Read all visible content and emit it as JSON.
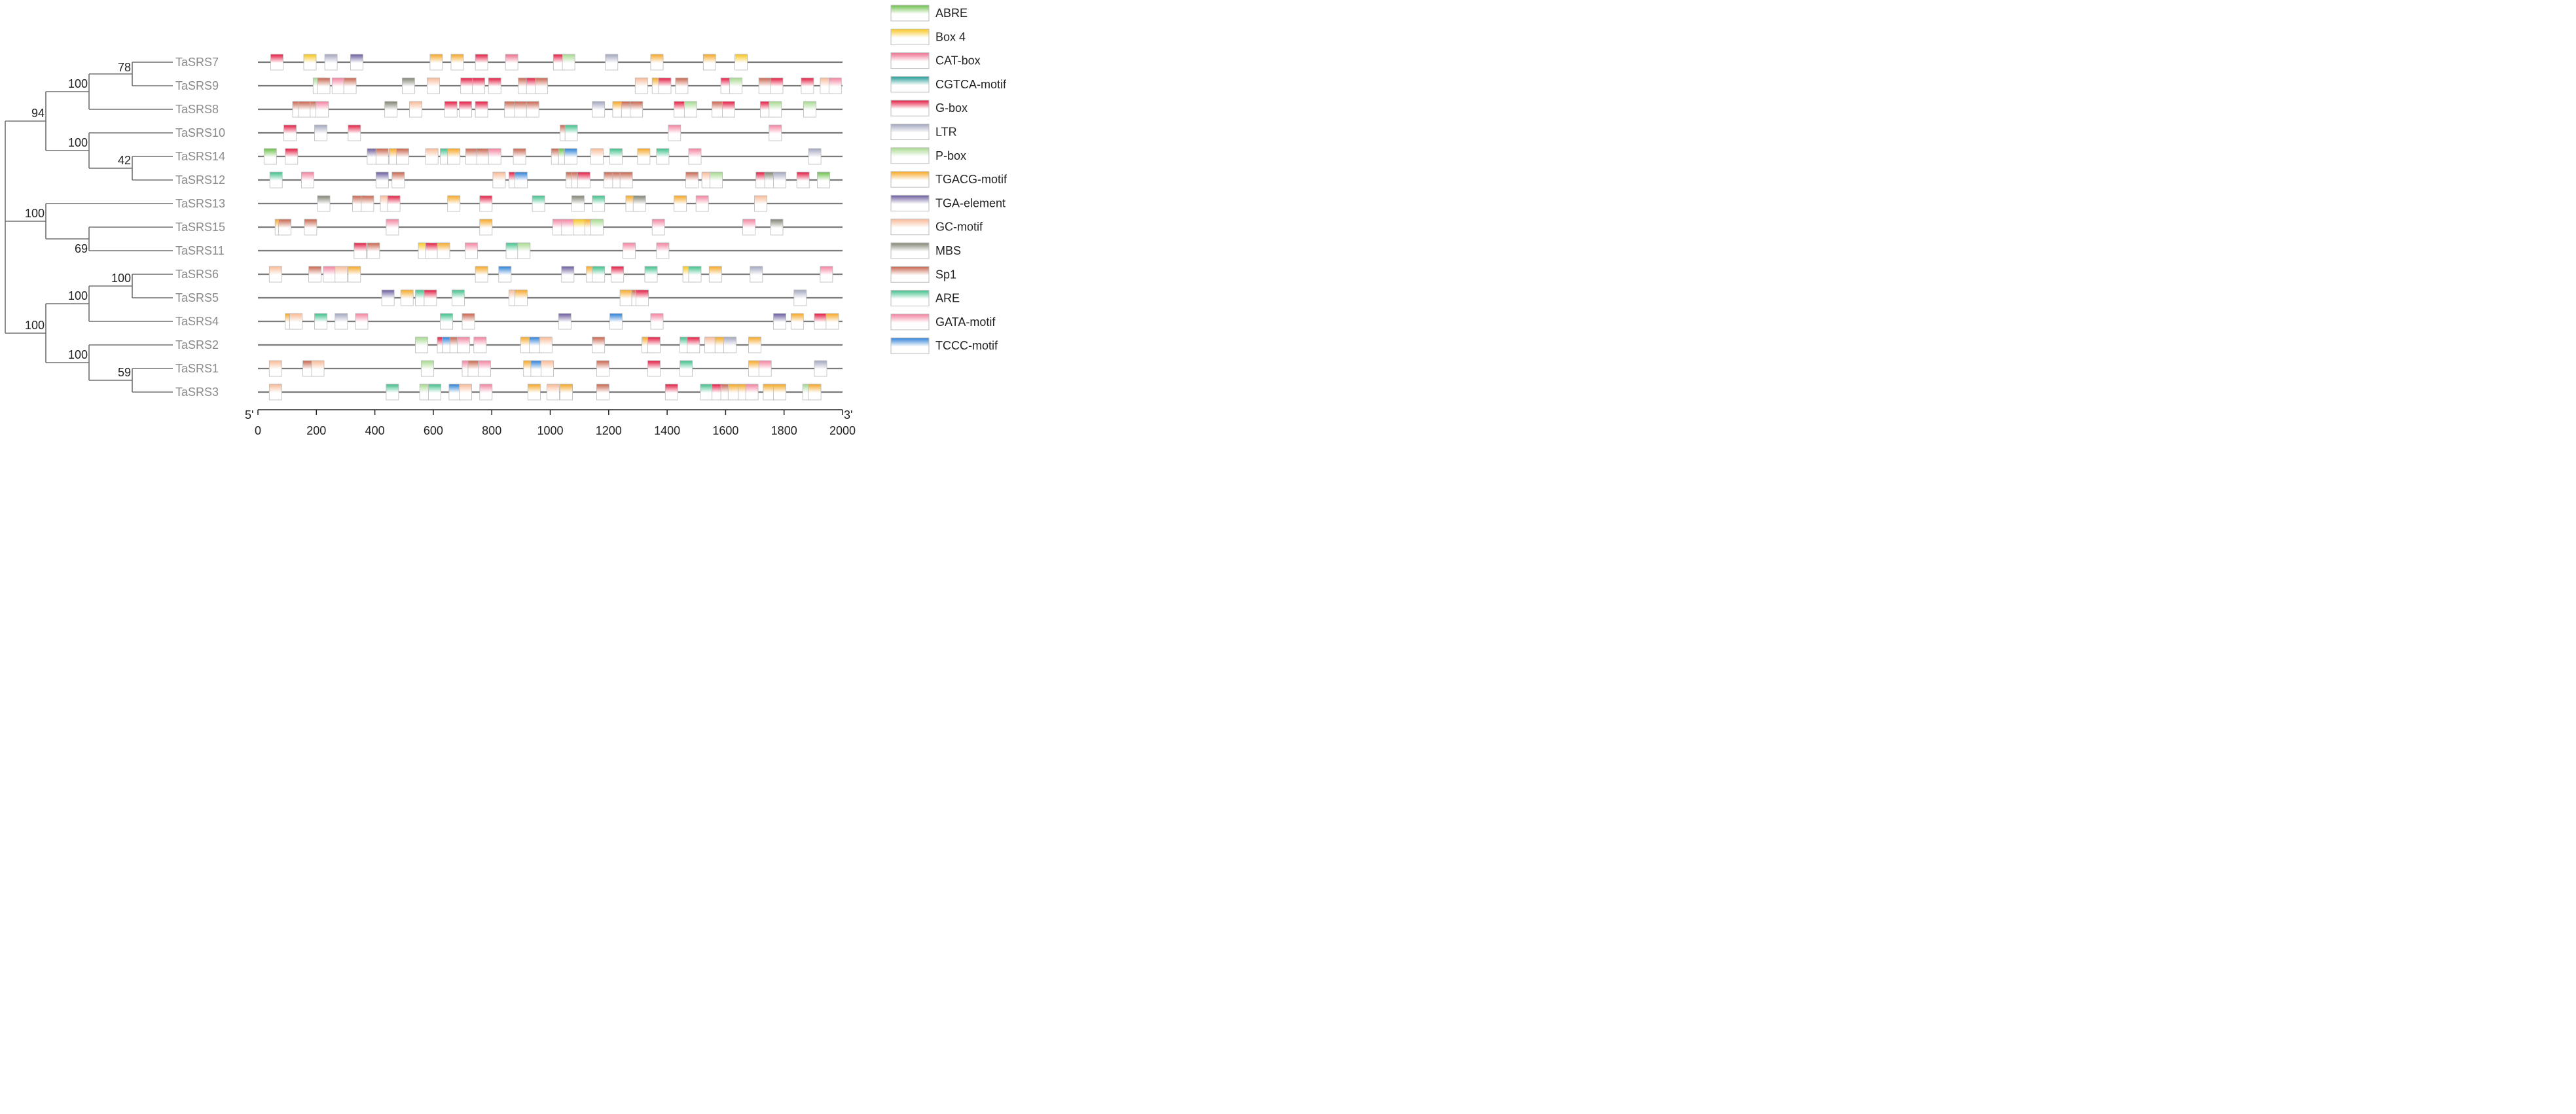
{
  "genes": [
    "TaSRS7",
    "TaSRS9",
    "TaSRS8",
    "TaSRS10",
    "TaSRS14",
    "TaSRS12",
    "TaSRS13",
    "TaSRS15",
    "TaSRS11",
    "TaSRS6",
    "TaSRS5",
    "TaSRS4",
    "TaSRS2",
    "TaSRS1",
    "TaSRS3"
  ],
  "bootstrap": {
    "n78": "78",
    "n100a": "100",
    "n94": "94",
    "n100b": "100",
    "n42": "42",
    "n100root": "100",
    "n69": "69",
    "n100c": "100",
    "n100d": "100",
    "n100e": "100",
    "n100f": "100",
    "n59": "59"
  },
  "axis": {
    "five_prime": "5'",
    "three_prime": "3'",
    "min": 0,
    "max": 2000,
    "ticks": [
      "0",
      "200",
      "400",
      "600",
      "800",
      "1000",
      "1200",
      "1400",
      "1600",
      "1800",
      "2000"
    ]
  },
  "legend": [
    {
      "name": "ABRE",
      "color": "#6cbf4a"
    },
    {
      "name": "Box 4",
      "color": "#f7c51c"
    },
    {
      "name": "CAT-box",
      "color": "#ec6d8c"
    },
    {
      "name": "CGTCA-motif",
      "color": "#1f9a94"
    },
    {
      "name": "G-box",
      "color": "#e3183f"
    },
    {
      "name": "LTR",
      "color": "#a2a6be"
    },
    {
      "name": "P-box",
      "color": "#a6d98e"
    },
    {
      "name": "TGACG-motif",
      "color": "#f5a623"
    },
    {
      "name": "TGA-element",
      "color": "#6a5a9c"
    },
    {
      "name": "GC-motif",
      "color": "#f8b996"
    },
    {
      "name": "MBS",
      "color": "#7d8270"
    },
    {
      "name": "Sp1",
      "color": "#c7634c"
    },
    {
      "name": "ARE",
      "color": "#3fbf8a"
    },
    {
      "name": "GATA-motif",
      "color": "#f2819e"
    },
    {
      "name": "TCCC-motif",
      "color": "#2b7fd6"
    }
  ],
  "motifs": {
    "TaSRS7": [
      [
        65,
        "G-box"
      ],
      [
        178,
        "Box 4"
      ],
      [
        250,
        "LTR"
      ],
      [
        338,
        "TGA-element"
      ],
      [
        610,
        "TGACG-motif"
      ],
      [
        682,
        "TGACG-motif"
      ],
      [
        765,
        "G-box"
      ],
      [
        868,
        "CAT-box"
      ],
      [
        1032,
        "G-box"
      ],
      [
        1063,
        "P-box"
      ],
      [
        1210,
        "LTR"
      ],
      [
        1365,
        "TGACG-motif"
      ],
      [
        1545,
        "TGACG-motif"
      ],
      [
        1653,
        "Box 4"
      ]
    ],
    "TaSRS9": [
      [
        210,
        "P-box"
      ],
      [
        225,
        "Sp1"
      ],
      [
        275,
        "GATA-motif"
      ],
      [
        315,
        "Sp1"
      ],
      [
        515,
        "MBS"
      ],
      [
        600,
        "GC-motif"
      ],
      [
        715,
        "G-box"
      ],
      [
        755,
        "G-box"
      ],
      [
        810,
        "G-box"
      ],
      [
        912,
        "Sp1"
      ],
      [
        940,
        "G-box"
      ],
      [
        970,
        "Sp1"
      ],
      [
        1312,
        "GC-motif"
      ],
      [
        1370,
        "TGACG-motif"
      ],
      [
        1392,
        "G-box"
      ],
      [
        1450,
        "Sp1"
      ],
      [
        1605,
        "G-box"
      ],
      [
        1635,
        "P-box"
      ],
      [
        1735,
        "Sp1"
      ],
      [
        1775,
        "G-box"
      ],
      [
        1880,
        "G-box"
      ],
      [
        1945,
        "GC-motif"
      ],
      [
        1975,
        "GATA-motif"
      ]
    ],
    "TaSRS8": [
      [
        140,
        "Sp1"
      ],
      [
        160,
        "Sp1"
      ],
      [
        200,
        "Sp1"
      ],
      [
        220,
        "GATA-motif"
      ],
      [
        455,
        "MBS"
      ],
      [
        540,
        "GC-motif"
      ],
      [
        660,
        "G-box"
      ],
      [
        710,
        "G-box"
      ],
      [
        765,
        "G-box"
      ],
      [
        865,
        "Sp1"
      ],
      [
        900,
        "Sp1"
      ],
      [
        940,
        "Sp1"
      ],
      [
        1165,
        "LTR"
      ],
      [
        1235,
        "TGACG-motif"
      ],
      [
        1265,
        "Sp1"
      ],
      [
        1295,
        "Sp1"
      ],
      [
        1445,
        "G-box"
      ],
      [
        1480,
        "P-box"
      ],
      [
        1575,
        "Sp1"
      ],
      [
        1610,
        "G-box"
      ],
      [
        1740,
        "G-box"
      ],
      [
        1770,
        "P-box"
      ],
      [
        1888,
        "P-box"
      ]
    ],
    "TaSRS10": [
      [
        110,
        "G-box"
      ],
      [
        215,
        "LTR"
      ],
      [
        330,
        "G-box"
      ],
      [
        1055,
        "Sp1"
      ],
      [
        1072,
        "ARE"
      ],
      [
        1425,
        "GATA-motif"
      ],
      [
        1770,
        "GATA-motif"
      ]
    ],
    "TaSRS14": [
      [
        42,
        "ABRE"
      ],
      [
        115,
        "G-box"
      ],
      [
        395,
        "TGA-element"
      ],
      [
        425,
        "Sp1"
      ],
      [
        470,
        "TGACG-motif"
      ],
      [
        495,
        "Sp1"
      ],
      [
        595,
        "GC-motif"
      ],
      [
        645,
        "ARE"
      ],
      [
        670,
        "TGACG-motif"
      ],
      [
        732,
        "Sp1"
      ],
      [
        770,
        "Sp1"
      ],
      [
        810,
        "GATA-motif"
      ],
      [
        895,
        "Sp1"
      ],
      [
        1025,
        "Sp1"
      ],
      [
        1050,
        "ABRE"
      ],
      [
        1070,
        "TCCC-motif"
      ],
      [
        1160,
        "GC-motif"
      ],
      [
        1225,
        "ARE"
      ],
      [
        1320,
        "TGACG-motif"
      ],
      [
        1385,
        "ARE"
      ],
      [
        1495,
        "GATA-motif"
      ],
      [
        1905,
        "LTR"
      ]
    ],
    "TaSRS12": [
      [
        62,
        "ARE"
      ],
      [
        170,
        "GATA-motif"
      ],
      [
        425,
        "TGA-element"
      ],
      [
        480,
        "Sp1"
      ],
      [
        825,
        "GC-motif"
      ],
      [
        880,
        "G-box"
      ],
      [
        900,
        "TCCC-motif"
      ],
      [
        1075,
        "Sp1"
      ],
      [
        1095,
        "Sp1"
      ],
      [
        1115,
        "G-box"
      ],
      [
        1205,
        "Sp1"
      ],
      [
        1235,
        "Sp1"
      ],
      [
        1260,
        "Sp1"
      ],
      [
        1485,
        "Sp1"
      ],
      [
        1540,
        "GC-motif"
      ],
      [
        1568,
        "P-box"
      ],
      [
        1725,
        "G-box"
      ],
      [
        1755,
        "MBS"
      ],
      [
        1785,
        "LTR"
      ],
      [
        1865,
        "G-box"
      ],
      [
        1935,
        "ABRE"
      ]
    ],
    "TaSRS13": [
      [
        225,
        "MBS"
      ],
      [
        345,
        "Sp1"
      ],
      [
        375,
        "Sp1"
      ],
      [
        440,
        "GC-motif"
      ],
      [
        465,
        "G-box"
      ],
      [
        670,
        "TGACG-motif"
      ],
      [
        780,
        "G-box"
      ],
      [
        960,
        "ARE"
      ],
      [
        1095,
        "MBS"
      ],
      [
        1165,
        "ARE"
      ],
      [
        1280,
        "TGACG-motif"
      ],
      [
        1305,
        "MBS"
      ],
      [
        1445,
        "TGACG-motif"
      ],
      [
        1520,
        "GATA-motif"
      ],
      [
        1720,
        "GC-motif"
      ]
    ],
    "TaSRS15": [
      [
        80,
        "TGACG-motif"
      ],
      [
        92,
        "Sp1"
      ],
      [
        180,
        "Sp1"
      ],
      [
        460,
        "GATA-motif"
      ],
      [
        780,
        "TGACG-motif"
      ],
      [
        1030,
        "GATA-motif"
      ],
      [
        1060,
        "GATA-motif"
      ],
      [
        1100,
        "Box 4"
      ],
      [
        1140,
        "TGACG-motif"
      ],
      [
        1160,
        "P-box"
      ],
      [
        1370,
        "GATA-motif"
      ],
      [
        1680,
        "GATA-motif"
      ],
      [
        1775,
        "MBS"
      ]
    ],
    "TaSRS11": [
      [
        350,
        "G-box"
      ],
      [
        395,
        "Sp1"
      ],
      [
        570,
        "Box 4"
      ],
      [
        595,
        "G-box"
      ],
      [
        635,
        "TGACG-motif"
      ],
      [
        730,
        "GATA-motif"
      ],
      [
        870,
        "ARE"
      ],
      [
        910,
        "P-box"
      ],
      [
        1270,
        "GATA-motif"
      ],
      [
        1385,
        "GATA-motif"
      ]
    ],
    "TaSRS6": [
      [
        60,
        "GC-motif"
      ],
      [
        195,
        "Sp1"
      ],
      [
        245,
        "GATA-motif"
      ],
      [
        285,
        "GC-motif"
      ],
      [
        330,
        "TGACG-motif"
      ],
      [
        765,
        "TGACG-motif"
      ],
      [
        845,
        "TCCC-motif"
      ],
      [
        1060,
        "TGA-element"
      ],
      [
        1145,
        "TGACG-motif"
      ],
      [
        1165,
        "ARE"
      ],
      [
        1230,
        "G-box"
      ],
      [
        1345,
        "ARE"
      ],
      [
        1475,
        "Box 4"
      ],
      [
        1495,
        "ARE"
      ],
      [
        1565,
        "TGACG-motif"
      ],
      [
        1705,
        "LTR"
      ],
      [
        1945,
        "GATA-motif"
      ]
    ],
    "TaSRS5": [
      [
        445,
        "TGA-element"
      ],
      [
        510,
        "TGACG-motif"
      ],
      [
        560,
        "ARE"
      ],
      [
        590,
        "G-box"
      ],
      [
        685,
        "ARE"
      ],
      [
        880,
        "GC-motif"
      ],
      [
        900,
        "TGACG-motif"
      ],
      [
        1260,
        "TGACG-motif"
      ],
      [
        1300,
        "Sp1"
      ],
      [
        1315,
        "G-box"
      ],
      [
        1855,
        "LTR"
      ]
    ],
    "TaSRS4": [
      [
        115,
        "TGACG-motif"
      ],
      [
        130,
        "GC-motif"
      ],
      [
        215,
        "ARE"
      ],
      [
        285,
        "LTR"
      ],
      [
        355,
        "GATA-motif"
      ],
      [
        645,
        "ARE"
      ],
      [
        720,
        "Sp1"
      ],
      [
        1050,
        "TGA-element"
      ],
      [
        1225,
        "TCCC-motif"
      ],
      [
        1365,
        "GATA-motif"
      ],
      [
        1785,
        "TGA-element"
      ],
      [
        1845,
        "TGACG-motif"
      ],
      [
        1925,
        "G-box"
      ],
      [
        1965,
        "TGACG-motif"
      ]
    ],
    "TaSRS2": [
      [
        560,
        "P-box"
      ],
      [
        635,
        "G-box"
      ],
      [
        652,
        "TCCC-motif"
      ],
      [
        678,
        "Sp1"
      ],
      [
        703,
        "GATA-motif"
      ],
      [
        760,
        "GATA-motif"
      ],
      [
        920,
        "TGACG-motif"
      ],
      [
        950,
        "TCCC-motif"
      ],
      [
        985,
        "GC-motif"
      ],
      [
        1165,
        "Sp1"
      ],
      [
        1335,
        "TGACG-motif"
      ],
      [
        1355,
        "G-box"
      ],
      [
        1465,
        "ARE"
      ],
      [
        1490,
        "G-box"
      ],
      [
        1550,
        "GC-motif"
      ],
      [
        1585,
        "TGACG-motif"
      ],
      [
        1615,
        "LTR"
      ],
      [
        1700,
        "TGACG-motif"
      ]
    ],
    "TaSRS1": [
      [
        60,
        "GC-motif"
      ],
      [
        175,
        "Sp1"
      ],
      [
        205,
        "GC-motif"
      ],
      [
        580,
        "P-box"
      ],
      [
        720,
        "GATA-motif"
      ],
      [
        740,
        "Sp1"
      ],
      [
        775,
        "GATA-motif"
      ],
      [
        930,
        "TGACG-motif"
      ],
      [
        955,
        "TCCC-motif"
      ],
      [
        990,
        "GC-motif"
      ],
      [
        1180,
        "Sp1"
      ],
      [
        1355,
        "G-box"
      ],
      [
        1465,
        "ARE"
      ],
      [
        1700,
        "TGACG-motif"
      ],
      [
        1735,
        "GATA-motif"
      ],
      [
        1925,
        "LTR"
      ]
    ],
    "TaSRS3": [
      [
        60,
        "GC-motif"
      ],
      [
        460,
        "ARE"
      ],
      [
        575,
        "P-box"
      ],
      [
        605,
        "ARE"
      ],
      [
        675,
        "TCCC-motif"
      ],
      [
        710,
        "GC-motif"
      ],
      [
        780,
        "GATA-motif"
      ],
      [
        945,
        "TGACG-motif"
      ],
      [
        1010,
        "GC-motif"
      ],
      [
        1055,
        "TGACG-motif"
      ],
      [
        1180,
        "Sp1"
      ],
      [
        1415,
        "G-box"
      ],
      [
        1535,
        "ARE"
      ],
      [
        1575,
        "G-box"
      ],
      [
        1605,
        "Sp1"
      ],
      [
        1630,
        "TGACG-motif"
      ],
      [
        1665,
        "TGACG-motif"
      ],
      [
        1690,
        "GATA-motif"
      ],
      [
        1750,
        "TGACG-motif"
      ],
      [
        1785,
        "TGACG-motif"
      ],
      [
        1885,
        "P-box"
      ],
      [
        1905,
        "TGACG-motif"
      ]
    ]
  }
}
